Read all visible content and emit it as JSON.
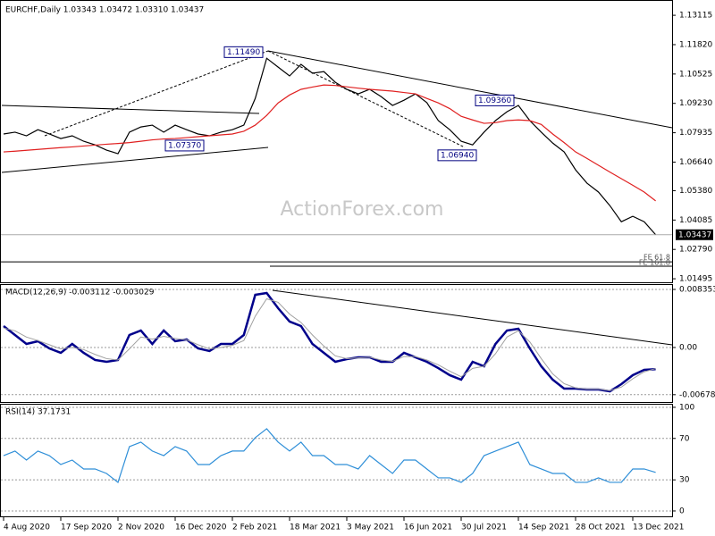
{
  "chart_data": [
    {
      "type": "line",
      "title": "EURCHF,Daily  1.03343 1.03472 1.03310 1.03437",
      "watermark": "ActionForex.com",
      "ylim": [
        1.0134,
        1.1371
      ],
      "yticks": [
        1.13115,
        {
          "value": 1.1182,
          "label": "1.11820"
        },
        1.10525,
        {
          "value": 1.0923,
          "label": "1.09230"
        },
        1.07935,
        {
          "value": 1.0664,
          "label": "1.06640"
        },
        {
          "value": 1.0538,
          "label": "1.05380"
        },
        1.04085,
        {
          "value": 1.0279,
          "label": "1.02790"
        },
        1.01495
      ],
      "last_price": 1.03437,
      "series": [
        {
          "color": "#000000",
          "values": [
            1.0788,
            1.0796,
            1.078,
            1.0807,
            1.0788,
            1.0768,
            1.078,
            1.0756,
            1.074,
            1.0717,
            1.0701,
            1.0796,
            1.0819,
            1.0827,
            1.0796,
            1.0827,
            1.0807,
            1.0788,
            1.078,
            1.0796,
            1.0807,
            1.0827,
            1.0945,
            1.1122,
            1.1083,
            1.1044,
            1.1095,
            1.1056,
            1.1063,
            1.1016,
            1.0985,
            1.0965,
            1.0985,
            1.0953,
            1.0914,
            1.0937,
            1.0965,
            1.0926,
            1.0847,
            1.0807,
            1.0756,
            1.074,
            1.0796,
            1.0847,
            1.0886,
            1.0914,
            1.0847,
            1.0796,
            1.0748,
            1.0709,
            1.063,
            1.0571,
            1.0532,
            1.0472,
            1.0401,
            1.0425,
            1.0401,
            1.03437
          ]
        },
        {
          "color": "#e02020",
          "values": [
            1.0709,
            1.0712,
            1.0716,
            1.072,
            1.0724,
            1.0728,
            1.0731,
            1.0735,
            1.0739,
            1.0743,
            1.0746,
            1.075,
            1.0756,
            1.0762,
            1.0766,
            1.0768,
            1.0772,
            1.0776,
            1.078,
            1.0784,
            1.0788,
            1.08,
            1.0827,
            1.087,
            1.0925,
            1.096,
            1.0985,
            1.0995,
            1.1004,
            1.1002,
            1.0996,
            1.099,
            1.0985,
            1.0981,
            1.0977,
            1.0971,
            1.0965,
            1.0945,
            1.0925,
            1.09,
            1.0866,
            1.085,
            1.0835,
            1.0838,
            1.0847,
            1.085,
            1.0847,
            1.083,
            1.0788,
            1.075,
            1.0709,
            1.068,
            1.065,
            1.062,
            1.0591,
            1.0562,
            1.0532,
            1.0493
          ]
        }
      ],
      "annotations": [
        {
          "value": 1.1149,
          "label": "1.11490"
        },
        {
          "value": 1.0737,
          "label": "1.07370"
        },
        {
          "value": 1.0694,
          "label": "1.06940"
        },
        {
          "value": 1.0936,
          "label": "1.09360"
        }
      ],
      "levels": [
        {
          "value": 1.0224,
          "label": "FE 61.8"
        },
        {
          "value": 1.0205,
          "label": "FE 161.8"
        }
      ]
    },
    {
      "type": "line",
      "title": "MACD(12,26,9) -0.003112 -0.003029",
      "ylim": [
        -0.00784,
        0.00912
      ],
      "yticks": [
        0.008353,
        {
          "value": 0,
          "label": "0.00"
        },
        -0.006788
      ],
      "grid": true,
      "series": [
        {
          "color": "#00008b",
          "values": [
            0.00308,
            0.0018,
            0.00051,
            0.0009,
            -0.00013,
            -0.00077,
            0.00051,
            -0.00077,
            -0.0018,
            -0.00206,
            -0.0018,
            0.0018,
            0.00244,
            0.00051,
            0.00244,
            0.0009,
            0.00116,
            -0.00013,
            -0.00051,
            0.00051,
            0.00051,
            0.0018,
            0.00758,
            0.00784,
            0.00565,
            0.00373,
            0.00308,
            0.00051,
            -0.00077,
            -0.00206,
            -0.00167,
            -0.00141,
            -0.00141,
            -0.00206,
            -0.00206,
            -0.00077,
            -0.00141,
            -0.00206,
            -0.00296,
            -0.00398,
            -0.00463,
            -0.00206,
            -0.0027,
            0.00051,
            0.00244,
            0.0027,
            -0.00013,
            -0.0027,
            -0.00463,
            -0.00591,
            -0.00591,
            -0.00604,
            -0.00604,
            -0.0063,
            -0.00527,
            -0.00398,
            -0.00321,
            -0.003112
          ]
        },
        {
          "color": "#a0a0a0",
          "values": [
            0.0028,
            0.0024,
            0.0015,
            0.001,
            0.0004,
            -0.0002,
            0,
            -0.0003,
            -0.001,
            -0.0016,
            -0.0018,
            -0.0002,
            0.0015,
            0.0012,
            0.0016,
            0.0013,
            0.0011,
            0.0004,
            -0.0002,
            0,
            0.0003,
            0.001,
            0.0045,
            0.007,
            0.0065,
            0.0048,
            0.0036,
            0.0018,
            0.0002,
            -0.0012,
            -0.0016,
            -0.0015,
            -0.0014,
            -0.0018,
            -0.002,
            -0.0013,
            -0.0013,
            -0.0018,
            -0.0025,
            -0.0034,
            -0.0042,
            -0.003,
            -0.0027,
            -0.0009,
            0.0015,
            0.0024,
            0.0008,
            -0.0016,
            -0.0038,
            -0.0052,
            -0.0058,
            -0.006,
            -0.006,
            -0.0062,
            -0.0057,
            -0.0045,
            -0.0035,
            -0.003029
          ]
        }
      ]
    },
    {
      "type": "line",
      "title": "RSI(14) 37.1731",
      "ylim": [
        -5.2,
        103.4
      ],
      "yticks": [
        100,
        70,
        30,
        0
      ],
      "grid": true,
      "categories": [
        "4 Aug 2020",
        null,
        null,
        null,
        null,
        "17 Sep 2020",
        null,
        null,
        null,
        null,
        "2 Nov 2020",
        null,
        null,
        null,
        null,
        "16 Dec 2020",
        null,
        null,
        null,
        null,
        "2 Feb 2021",
        null,
        null,
        null,
        null,
        "18 Mar 2021",
        null,
        null,
        null,
        null,
        "3 May 2021",
        null,
        null,
        null,
        null,
        "16 Jun 2021",
        null,
        null,
        null,
        null,
        "30 Jul 2021",
        null,
        null,
        null,
        null,
        "14 Sep 2021",
        null,
        null,
        null,
        null,
        "28 Oct 2021",
        null,
        null,
        null,
        null,
        "13 Dec 2021",
        null,
        null
      ],
      "series": [
        {
          "color": "#2f8fd8",
          "values": [
            53.4,
            57.8,
            49.1,
            57.8,
            53.4,
            44.8,
            49.1,
            40.5,
            40.5,
            36.2,
            27.6,
            62.1,
            66.4,
            57.8,
            53.4,
            62.1,
            57.8,
            44.8,
            44.8,
            53.4,
            57.8,
            57.8,
            70.7,
            79.3,
            66.4,
            57.8,
            66.4,
            53.4,
            53.4,
            44.8,
            44.8,
            40.5,
            53.4,
            44.8,
            36.2,
            49.1,
            49.1,
            40.5,
            31.9,
            31.9,
            27.6,
            36.2,
            53.4,
            57.8,
            62.1,
            66.4,
            44.8,
            40.5,
            36.2,
            36.2,
            27.6,
            27.6,
            31.9,
            27.6,
            27.6,
            40.5,
            40.5,
            37.1731
          ]
        }
      ]
    }
  ]
}
